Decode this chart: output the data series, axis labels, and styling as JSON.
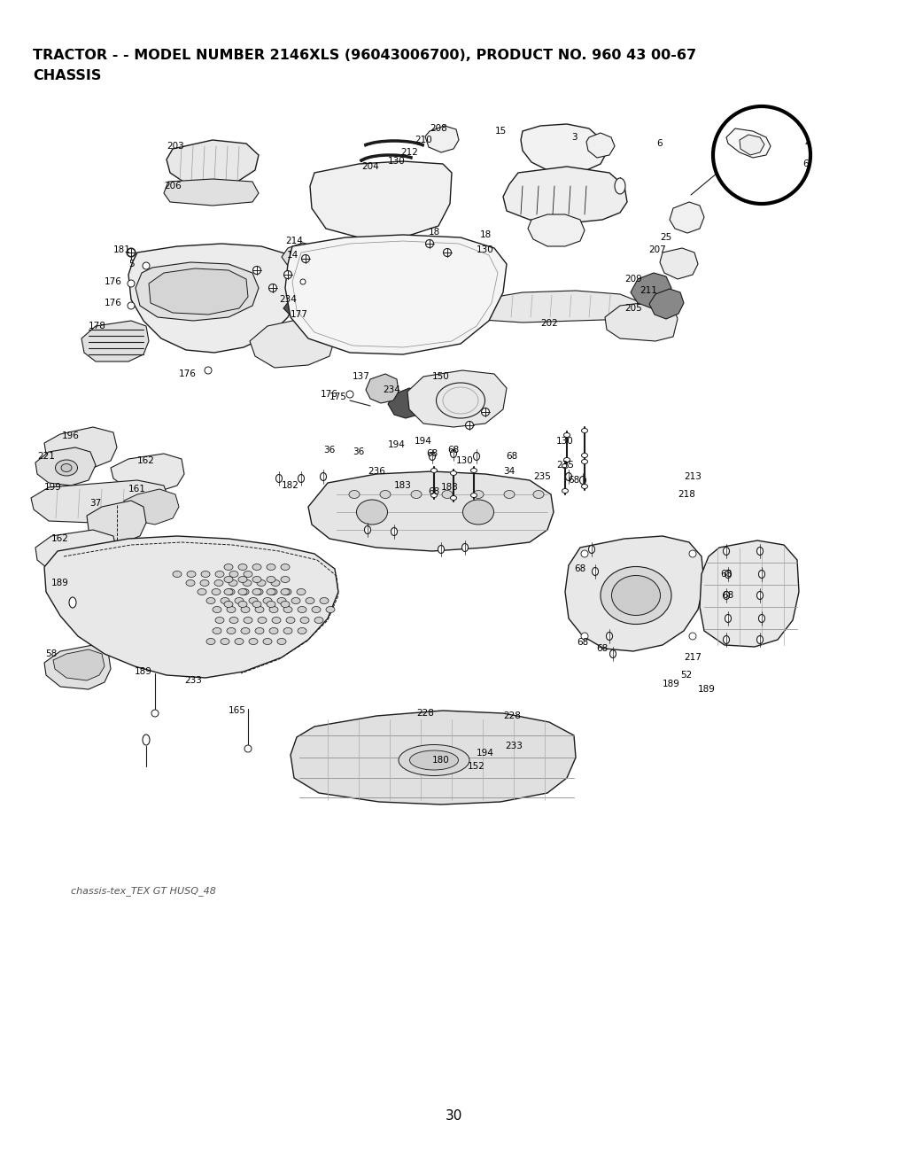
{
  "title_line1": "TRACTOR - - MODEL NUMBER 2146XLS (96043006700), PRODUCT NO. 960 43 00-67",
  "title_line2": "CHASSIS",
  "page_number": "30",
  "footer_text": "chassis-tex_TEX GT HUSQ_48",
  "background_color": "#ffffff",
  "text_color": "#000000",
  "fig_width": 10.24,
  "fig_height": 13.16,
  "dpi": 100,
  "title_fontsize": 11.5,
  "page_num_fontsize": 11,
  "footer_fontsize": 8
}
